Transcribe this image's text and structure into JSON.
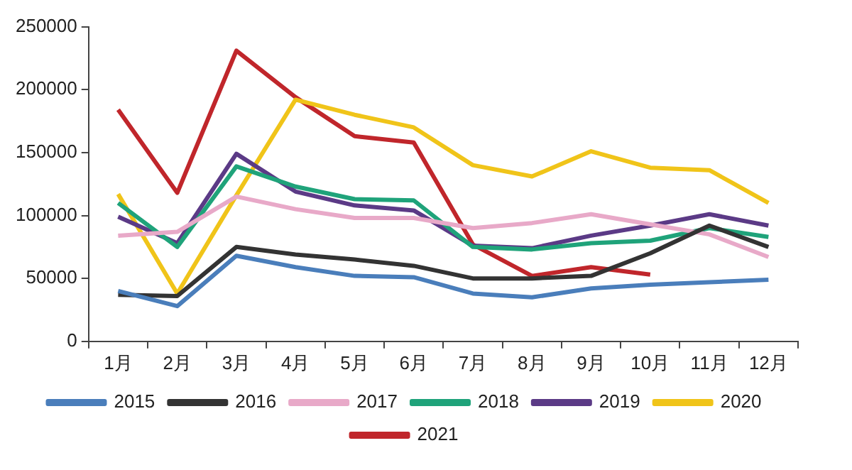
{
  "chart_data": {
    "type": "line",
    "categories": [
      "1月",
      "2月",
      "3月",
      "4月",
      "5月",
      "6月",
      "7月",
      "8月",
      "9月",
      "10月",
      "11月",
      "12月"
    ],
    "series": [
      {
        "name": "2015",
        "color": "#4a7ebb",
        "values": [
          40000,
          28000,
          68000,
          59000,
          52000,
          51000,
          38000,
          35000,
          42000,
          45000,
          47000,
          49000
        ]
      },
      {
        "name": "2016",
        "color": "#333333",
        "values": [
          37000,
          36000,
          75000,
          69000,
          65000,
          60000,
          50000,
          50000,
          52000,
          70000,
          92000,
          75000
        ]
      },
      {
        "name": "2017",
        "color": "#e8a9c8",
        "values": [
          84000,
          87000,
          115000,
          105000,
          98000,
          98000,
          90000,
          94000,
          101000,
          93000,
          85000,
          67000
        ]
      },
      {
        "name": "2018",
        "color": "#1fa37a",
        "values": [
          110000,
          75000,
          139000,
          123000,
          113000,
          112000,
          75000,
          73000,
          78000,
          80000,
          90000,
          83000
        ]
      },
      {
        "name": "2019",
        "color": "#5b3a86",
        "values": [
          99000,
          78000,
          149000,
          119000,
          108000,
          104000,
          76000,
          74000,
          84000,
          92000,
          101000,
          92000
        ]
      },
      {
        "name": "2020",
        "color": "#f0c419",
        "values": [
          117000,
          38000,
          116000,
          192000,
          180000,
          170000,
          140000,
          131000,
          151000,
          138000,
          136000,
          110000
        ]
      },
      {
        "name": "2021",
        "color": "#c0262b",
        "values": [
          184000,
          118000,
          231000,
          194000,
          163000,
          158000,
          77000,
          52000,
          59000,
          53000,
          null,
          null
        ]
      }
    ],
    "ylim": [
      0,
      250000
    ],
    "yticks": [
      0,
      50000,
      100000,
      150000,
      200000,
      250000
    ],
    "grid": false,
    "legend": "bottom",
    "marker": "none",
    "line_style": "solid"
  }
}
